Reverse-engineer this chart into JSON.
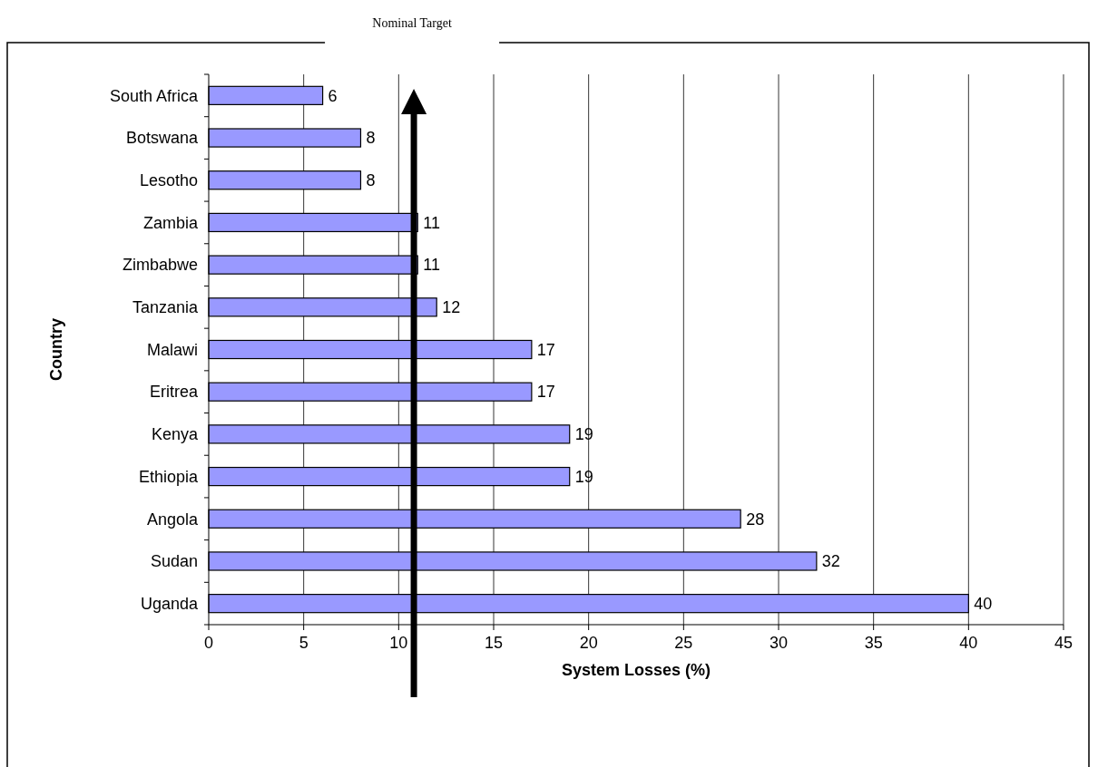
{
  "chart_data": {
    "type": "bar",
    "orientation": "horizontal",
    "xlabel": "System Losses (%)",
    "ylabel": "Country",
    "categories": [
      "South Africa",
      "Botswana",
      "Lesotho",
      "Zambia",
      "Zimbabwe",
      "Tanzania",
      "Malawi",
      "Eritrea",
      "Kenya",
      "Ethiopia",
      "Angola",
      "Sudan",
      "Uganda"
    ],
    "values": [
      6,
      8,
      8,
      11,
      11,
      12,
      17,
      17,
      19,
      19,
      28,
      32,
      40
    ],
    "color": "#9999ff",
    "xlim": [
      0,
      45
    ],
    "xticks": [
      0,
      5,
      10,
      15,
      20,
      25,
      30,
      35,
      40,
      45
    ],
    "grid": "x",
    "data_labels": true,
    "ref_lines": [
      {
        "axis": "x",
        "value": 10.8,
        "label": "Nominal Target",
        "color": "#000000"
      }
    ]
  }
}
